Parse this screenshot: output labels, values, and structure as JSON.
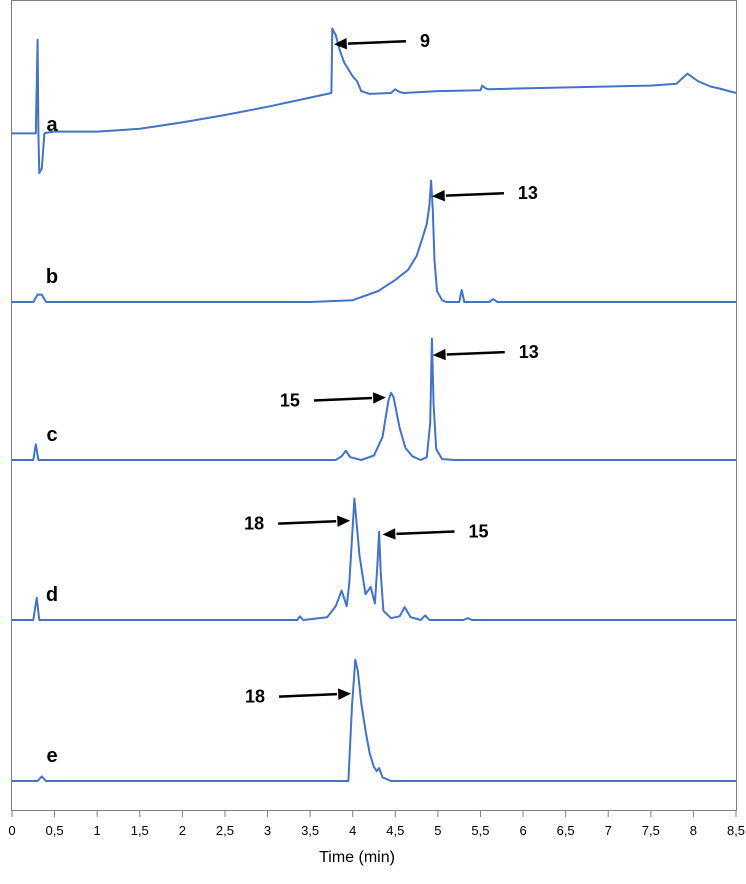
{
  "chart_data": {
    "type": "line",
    "xlabel": "Time (min)",
    "xlim": [
      0,
      8.5
    ],
    "x_ticks": [
      0,
      0.5,
      1,
      1.5,
      2,
      2.5,
      3,
      3.5,
      4,
      4.5,
      5,
      5.5,
      6,
      6.5,
      7,
      7.5,
      8,
      8.5
    ],
    "x_tick_labels": [
      "0",
      "0,5",
      "1",
      "1,5",
      "2",
      "2,5",
      "3",
      "3,5",
      "4",
      "4,5",
      "5",
      "5,5",
      "6",
      "6,5",
      "7",
      "7,5",
      "8",
      "8,5"
    ],
    "color": "#4472c4",
    "grid": false,
    "series": [
      {
        "name": "a",
        "x": [
          0,
          0.28,
          0.3,
          0.31,
          0.32,
          0.35,
          0.38,
          0.42,
          0.5,
          1,
          1.5,
          2,
          2.5,
          3,
          3.5,
          3.75,
          3.76,
          3.8,
          3.85,
          3.9,
          4,
          4.05,
          4.1,
          4.2,
          4.45,
          4.5,
          4.55,
          4.6,
          5,
          5.5,
          5.52,
          5.56,
          5.6,
          6,
          7,
          7.5,
          7.8,
          7.93,
          8.05,
          8.2,
          8.3,
          8.5
        ],
        "y": [
          1.8,
          1.8,
          12,
          1.8,
          -2.5,
          -2,
          1.8,
          1.9,
          2,
          2,
          2.3,
          3,
          3.8,
          4.7,
          5.7,
          6.2,
          13.2,
          12.5,
          10.8,
          9.5,
          8,
          7.5,
          6.4,
          6.1,
          6.2,
          6.6,
          6.3,
          6.2,
          6.4,
          6.5,
          7,
          6.7,
          6.6,
          6.7,
          6.9,
          7,
          7.2,
          8.3,
          7.5,
          6.9,
          6.7,
          6.2
        ]
      },
      {
        "name": "b",
        "x": [
          0,
          0.25,
          0.3,
          0.35,
          0.4,
          0.5,
          1,
          2,
          3,
          3.5,
          4,
          4.3,
          4.5,
          4.65,
          4.75,
          4.82,
          4.87,
          4.9,
          4.92,
          4.94,
          4.96,
          4.99,
          5.05,
          5.1,
          5.25,
          5.28,
          5.31,
          5.35,
          5.6,
          5.65,
          5.7,
          6,
          7,
          8,
          8.5
        ],
        "y": [
          0,
          0,
          0.8,
          0.8,
          0,
          0,
          0,
          0,
          0,
          0,
          0.2,
          1.2,
          2.4,
          3.5,
          5,
          7,
          8.5,
          10.5,
          13.2,
          10,
          4.5,
          1.2,
          0.2,
          0,
          0,
          1.3,
          0,
          0,
          0,
          0.3,
          0,
          0,
          0,
          0,
          0
        ]
      },
      {
        "name": "c",
        "x": [
          0,
          0.25,
          0.28,
          0.31,
          0.35,
          1,
          2,
          3,
          3.8,
          3.87,
          3.92,
          3.97,
          4.1,
          4.25,
          4.35,
          4.42,
          4.45,
          4.48,
          4.55,
          4.62,
          4.7,
          4.8,
          4.87,
          4.91,
          4.93,
          4.95,
          4.98,
          5.05,
          5.2,
          6,
          7,
          8,
          8.5
        ],
        "y": [
          0,
          0,
          1.7,
          0,
          0,
          0,
          0,
          0,
          0,
          0.4,
          1,
          0.3,
          0,
          0.5,
          2.5,
          6.5,
          7.3,
          6.8,
          3.5,
          1.3,
          0.4,
          0,
          0.3,
          4,
          13.2,
          6,
          1.2,
          0.1,
          0,
          0,
          0,
          0,
          0
        ]
      },
      {
        "name": "d",
        "x": [
          0,
          0.25,
          0.29,
          0.32,
          0.36,
          1,
          2,
          3,
          3.35,
          3.38,
          3.42,
          3.7,
          3.8,
          3.87,
          3.93,
          3.96,
          4.02,
          4.08,
          4.15,
          4.21,
          4.26,
          4.29,
          4.31,
          4.33,
          4.36,
          4.45,
          4.55,
          4.61,
          4.68,
          4.8,
          4.85,
          4.9,
          5.3,
          5.35,
          5.4,
          6,
          7,
          8,
          8.5
        ],
        "y": [
          0,
          0,
          2.4,
          0,
          0,
          0,
          0,
          0,
          0,
          0.4,
          0,
          0.3,
          1.5,
          3.2,
          1.5,
          4,
          13.2,
          7,
          2.8,
          3.6,
          1.8,
          6,
          9.6,
          5,
          1,
          0.2,
          0.4,
          1.4,
          0.3,
          0,
          0.5,
          0,
          0,
          0.2,
          0,
          0,
          0,
          0,
          0
        ]
      },
      {
        "name": "e",
        "x": [
          0,
          0.3,
          0.35,
          0.4,
          1,
          2,
          3,
          3.95,
          3.99,
          4.03,
          4.06,
          4.1,
          4.15,
          4.2,
          4.25,
          4.28,
          4.31,
          4.35,
          4.45,
          5,
          6,
          7,
          8,
          8.5
        ],
        "y": [
          0,
          0,
          0.5,
          0,
          0,
          0,
          0,
          0,
          8,
          13.2,
          12,
          8.5,
          5.5,
          3,
          1.5,
          1.1,
          1.4,
          0.4,
          0,
          0,
          0,
          0,
          0,
          0
        ]
      }
    ],
    "annotations": [
      {
        "series": "a",
        "text": "9",
        "x": 3.78,
        "y": 11.5,
        "direction": "from-right"
      },
      {
        "series": "b",
        "text": "13",
        "x": 4.93,
        "y": 11.5,
        "direction": "from-right"
      },
      {
        "series": "c",
        "text": "15",
        "x": 4.39,
        "y": 6.8,
        "direction": "from-left"
      },
      {
        "series": "c",
        "text": "13",
        "x": 4.94,
        "y": 11.4,
        "direction": "from-right"
      },
      {
        "series": "d",
        "text": "18",
        "x": 3.97,
        "y": 10.8,
        "direction": "from-left"
      },
      {
        "series": "d",
        "text": "15",
        "x": 4.35,
        "y": 9.3,
        "direction": "from-right"
      },
      {
        "series": "e",
        "text": "18",
        "x": 3.98,
        "y": 9.5,
        "direction": "from-left"
      }
    ]
  }
}
